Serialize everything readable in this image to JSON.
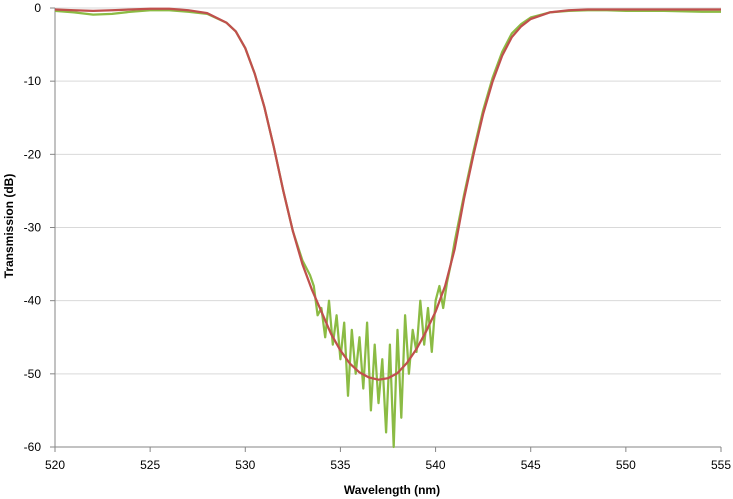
{
  "chart_data": {
    "type": "line",
    "title": "",
    "xlabel": "Wavelength (nm)",
    "ylabel": "Transmission (dB)",
    "xlim": [
      520,
      555
    ],
    "ylim": [
      -60,
      0
    ],
    "x_ticks": [
      "520",
      "525",
      "530",
      "535",
      "540",
      "545",
      "550",
      "555"
    ],
    "y_ticks": [
      "0",
      "-10",
      "-20",
      "-30",
      "-40",
      "-50",
      "-60"
    ],
    "grid": "horizontal",
    "legend": "none",
    "series": [
      {
        "color": "#8bbb44",
        "x": [
          520,
          521,
          522,
          523,
          524,
          525,
          526,
          527,
          528,
          529,
          529.5,
          530,
          530.5,
          531,
          531.5,
          532,
          532.5,
          533,
          533.4,
          533.6,
          533.8,
          534.0,
          534.2,
          534.4,
          534.6,
          534.8,
          535.0,
          535.2,
          535.4,
          535.6,
          535.8,
          536.0,
          536.2,
          536.4,
          536.6,
          536.8,
          537.0,
          537.2,
          537.4,
          537.6,
          537.8,
          538.0,
          538.2,
          538.4,
          538.6,
          538.8,
          539.0,
          539.2,
          539.4,
          539.6,
          539.8,
          540.0,
          540.2,
          540.4,
          540.6,
          540.8,
          541.0,
          541.5,
          542,
          542.5,
          543,
          543.5,
          544,
          544.5,
          545,
          546,
          547,
          548,
          549,
          550,
          552,
          554,
          555
        ],
        "y": [
          -0.4,
          -0.6,
          -0.9,
          -0.8,
          -0.5,
          -0.3,
          -0.3,
          -0.5,
          -0.8,
          -2.0,
          -3.2,
          -5.5,
          -9.0,
          -13.5,
          -19.0,
          -25.0,
          -30.5,
          -34.5,
          -36.5,
          -38.0,
          -42.0,
          -41.0,
          -45.0,
          -40.0,
          -46.0,
          -42.0,
          -48.0,
          -43.0,
          -53.0,
          -44.0,
          -50.0,
          -45.0,
          -52.0,
          -43.0,
          -55.0,
          -46.0,
          -54.0,
          -48.0,
          -58.0,
          -46.0,
          -60.0,
          -44.0,
          -56.0,
          -42.0,
          -50.0,
          -44.0,
          -47.0,
          -40.0,
          -46.0,
          -41.0,
          -47.0,
          -40.0,
          -38.0,
          -41.0,
          -37.5,
          -35.0,
          -32.0,
          -25.5,
          -19.5,
          -14.0,
          -9.5,
          -6.0,
          -3.5,
          -2.2,
          -1.3,
          -0.6,
          -0.4,
          -0.3,
          -0.3,
          -0.4,
          -0.4,
          -0.5,
          -0.5
        ]
      },
      {
        "color": "#c0504d",
        "x": [
          520,
          521,
          522,
          523,
          524,
          525,
          526,
          527,
          528,
          529,
          529.5,
          530,
          530.5,
          531,
          531.5,
          532,
          532.5,
          533,
          533.5,
          534,
          534.5,
          535,
          535.5,
          536,
          536.5,
          537,
          537.5,
          538,
          538.5,
          539,
          539.5,
          540,
          540.5,
          541,
          541.5,
          542,
          542.5,
          543,
          543.5,
          544,
          544.5,
          545,
          546,
          547,
          548,
          549,
          550,
          552,
          554,
          555
        ],
        "y": [
          -0.2,
          -0.3,
          -0.4,
          -0.3,
          -0.2,
          -0.1,
          -0.1,
          -0.3,
          -0.7,
          -2.0,
          -3.2,
          -5.5,
          -9.0,
          -13.5,
          -19.0,
          -25.0,
          -30.5,
          -35.0,
          -38.5,
          -41.5,
          -44.5,
          -46.8,
          -48.6,
          -49.8,
          -50.5,
          -50.8,
          -50.6,
          -49.9,
          -48.5,
          -46.6,
          -44.2,
          -41.5,
          -38.0,
          -33.0,
          -26.0,
          -20.0,
          -14.5,
          -10.0,
          -6.5,
          -4.0,
          -2.5,
          -1.5,
          -0.6,
          -0.3,
          -0.2,
          -0.2,
          -0.2,
          -0.2,
          -0.2,
          -0.2
        ]
      }
    ]
  }
}
